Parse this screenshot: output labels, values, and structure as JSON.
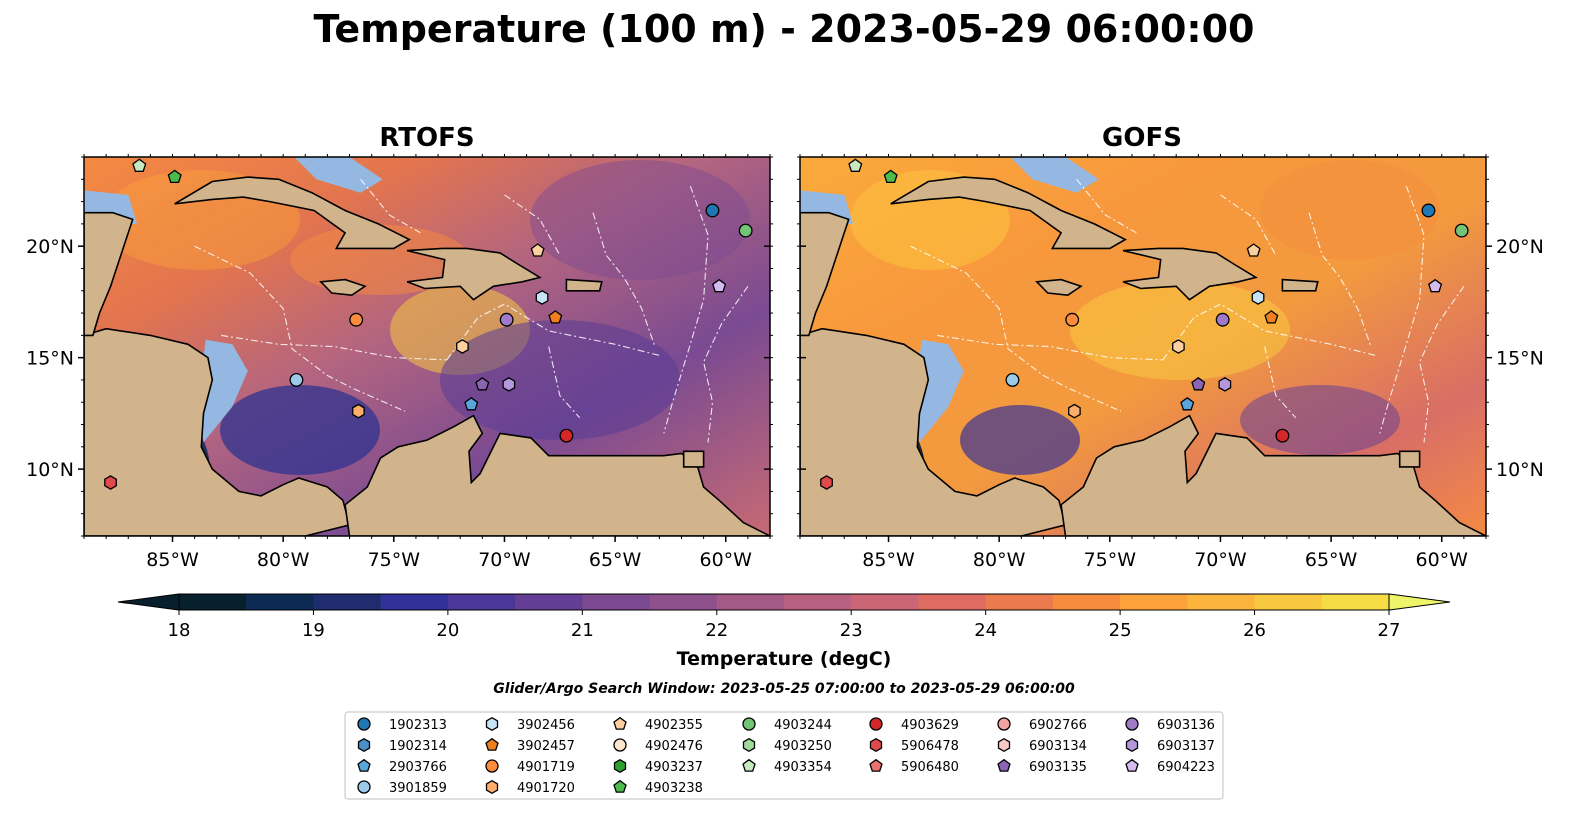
{
  "figure": {
    "title": "Temperature (100 m) - 2023-05-29 06:00:00",
    "search_window": "Glider/Argo Search Window: 2023-05-25 07:00:00 to 2023-05-29 06:00:00"
  },
  "panels": [
    {
      "title": "RTOFS"
    },
    {
      "title": "GOFS"
    }
  ],
  "map_extent": {
    "lon": [
      -89,
      -58
    ],
    "lat": [
      7,
      24
    ]
  },
  "lon_ticks": [
    {
      "value": -85,
      "label": "85°W"
    },
    {
      "value": -80,
      "label": "80°W"
    },
    {
      "value": -75,
      "label": "75°W"
    },
    {
      "value": -70,
      "label": "70°W"
    },
    {
      "value": -65,
      "label": "65°W"
    },
    {
      "value": -60,
      "label": "60°W"
    }
  ],
  "lat_ticks": [
    {
      "value": 20,
      "label": "20°N"
    },
    {
      "value": 15,
      "label": "15°N"
    },
    {
      "value": 10,
      "label": "10°N"
    }
  ],
  "colors": {
    "land": "#d2b48c",
    "shelf": "#95b8e3",
    "scale": [
      "#08202e",
      "#0d2a55",
      "#1f2d6e",
      "#32319a",
      "#4a3797",
      "#643e94",
      "#7a4990",
      "#8e518c",
      "#a35a86",
      "#b8607f",
      "#cb6676",
      "#de6c62",
      "#ec7a4f",
      "#f78c3e",
      "#fba23a",
      "#fbb53c",
      "#f8c840",
      "#f5dc45",
      "#eef56a"
    ]
  },
  "colorbar": {
    "label": "Temperature (degC)",
    "min": 18,
    "max": 27,
    "step": 0.5,
    "ticks": [
      "18",
      "19",
      "20",
      "21",
      "22",
      "23",
      "24",
      "25",
      "26",
      "27"
    ]
  },
  "legend": {
    "columns": [
      [
        {
          "id": "1902313",
          "shape": "circle",
          "color": "#1f77b4"
        },
        {
          "id": "1902314",
          "shape": "hexagon",
          "color": "#4a90c8"
        },
        {
          "id": "2903766",
          "shape": "pentagon",
          "color": "#58a6dc"
        },
        {
          "id": "3901859",
          "shape": "circle",
          "color": "#9ecae9"
        }
      ],
      [
        {
          "id": "3902456",
          "shape": "hexagon",
          "color": "#c6e4f6"
        },
        {
          "id": "3902457",
          "shape": "pentagon",
          "color": "#f07f20"
        },
        {
          "id": "4901719",
          "shape": "circle",
          "color": "#fd8d3c"
        },
        {
          "id": "4901720",
          "shape": "hexagon",
          "color": "#fdae6b"
        }
      ],
      [
        {
          "id": "4902355",
          "shape": "pentagon",
          "color": "#fdd0a2"
        },
        {
          "id": "4902476",
          "shape": "circle",
          "color": "#fee6ce"
        },
        {
          "id": "4903237",
          "shape": "hexagon",
          "color": "#2ca02c"
        },
        {
          "id": "4903238",
          "shape": "pentagon",
          "color": "#4cbb4c"
        }
      ],
      [
        {
          "id": "4903244",
          "shape": "circle",
          "color": "#74c476"
        },
        {
          "id": "4903250",
          "shape": "hexagon",
          "color": "#a1d99b"
        },
        {
          "id": "4903354",
          "shape": "pentagon",
          "color": "#c7e9c0"
        }
      ],
      [
        {
          "id": "4903629",
          "shape": "circle",
          "color": "#d62728"
        },
        {
          "id": "5906478",
          "shape": "hexagon",
          "color": "#e04a4a"
        },
        {
          "id": "5906480",
          "shape": "pentagon",
          "color": "#ec7070"
        }
      ],
      [
        {
          "id": "6902766",
          "shape": "circle",
          "color": "#f4a3a3"
        },
        {
          "id": "6903134",
          "shape": "hexagon",
          "color": "#fbc8c8"
        },
        {
          "id": "6903135",
          "shape": "pentagon",
          "color": "#8c64b4"
        }
      ],
      [
        {
          "id": "6903136",
          "shape": "circle",
          "color": "#9e7ac8"
        },
        {
          "id": "6903137",
          "shape": "hexagon",
          "color": "#b497dc"
        },
        {
          "id": "6904223",
          "shape": "pentagon",
          "color": "#d4bcf0"
        }
      ]
    ]
  },
  "markers": [
    {
      "lon": -60.6,
      "lat": 21.6,
      "shape": "circle",
      "color": "#1f77b4"
    },
    {
      "lon": -59.1,
      "lat": 20.7,
      "shape": "circle",
      "color": "#74c476"
    },
    {
      "lon": -68.5,
      "lat": 19.8,
      "shape": "pentagon",
      "color": "#fdd0a2"
    },
    {
      "lon": -60.3,
      "lat": 18.2,
      "shape": "pentagon",
      "color": "#d4bcf0"
    },
    {
      "lon": -68.3,
      "lat": 17.7,
      "shape": "hexagon",
      "color": "#c6e4f6"
    },
    {
      "lon": -67.7,
      "lat": 16.8,
      "shape": "pentagon",
      "color": "#f07f20"
    },
    {
      "lon": -69.9,
      "lat": 16.7,
      "shape": "circle",
      "color": "#9e7ac8"
    },
    {
      "lon": -76.7,
      "lat": 16.7,
      "shape": "circle",
      "color": "#fd8d3c"
    },
    {
      "lon": -71.9,
      "lat": 15.5,
      "shape": "hexagon",
      "color": "#fdd0a2"
    },
    {
      "lon": -79.4,
      "lat": 14.0,
      "shape": "circle",
      "color": "#9ecae9"
    },
    {
      "lon": -71.0,
      "lat": 13.8,
      "shape": "pentagon",
      "color": "#8c64b4"
    },
    {
      "lon": -69.8,
      "lat": 13.8,
      "shape": "hexagon",
      "color": "#b497dc"
    },
    {
      "lon": -71.5,
      "lat": 12.9,
      "shape": "pentagon",
      "color": "#58a6dc"
    },
    {
      "lon": -76.6,
      "lat": 12.6,
      "shape": "hexagon",
      "color": "#fdae6b"
    },
    {
      "lon": -67.2,
      "lat": 11.5,
      "shape": "circle",
      "color": "#d62728"
    },
    {
      "lon": -87.8,
      "lat": 9.4,
      "shape": "hexagon",
      "color": "#e04a4a"
    },
    {
      "lon": -86.5,
      "lat": 23.6,
      "shape": "pentagon",
      "color": "#c7e9c0"
    },
    {
      "lon": -84.9,
      "lat": 23.1,
      "shape": "pentagon",
      "color": "#4cbb4c"
    }
  ]
}
